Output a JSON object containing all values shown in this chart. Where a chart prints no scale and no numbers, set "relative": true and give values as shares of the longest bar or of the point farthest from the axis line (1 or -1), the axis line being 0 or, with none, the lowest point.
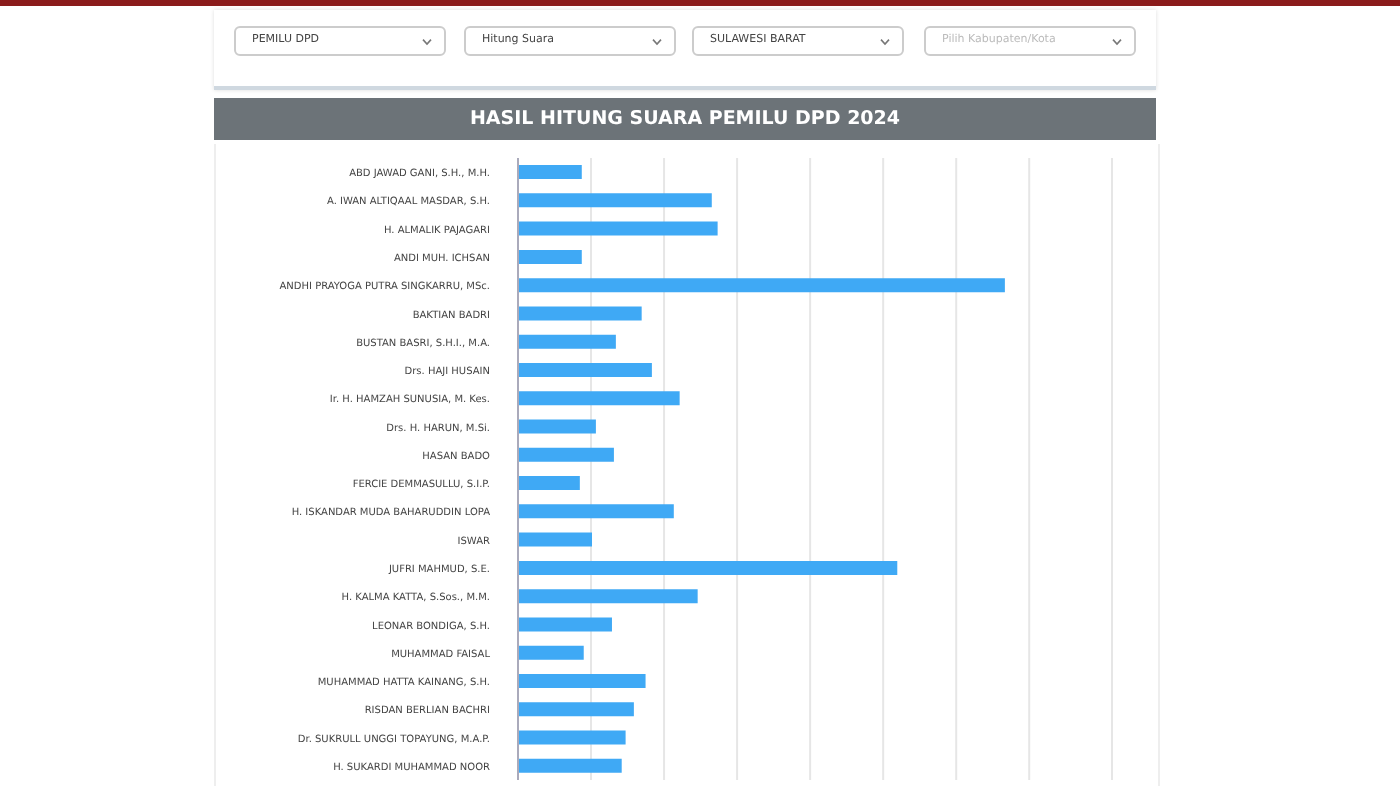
{
  "chart_data": {
    "type": "bar",
    "orientation": "horizontal",
    "relative": true,
    "title": "HASIL HITUNG SUARA PEMILU DPD 2024",
    "grid": "x",
    "color": "#3fa9f5",
    "annotations": [
      "PEMILU DPD",
      "Hitung Suara",
      "SULAWESI BARAT",
      "Pilih Kabupaten/Kota"
    ],
    "categories": [
      "ABD JAWAD GANI, S.H., M.H.",
      "A. IWAN ALTIQAAL MASDAR, S.H.",
      "H. ALMALIK PAJAGARI",
      "ANDI MUH. ICHSAN",
      "ANDHI PRAYOGA PUTRA SINGKARRU, MSc.",
      "BAKTIAN BADRI",
      "BUSTAN BASRI, S.H.I., M.A.",
      "Drs. HAJI HUSAIN",
      "Ir. H. HAMZAH SUNUSIA, M. Kes.",
      "Drs. H. HARUN, M.Si.",
      "HASAN BADO",
      "FERCIE DEMMASULLU, S.I.P.",
      "H. ISKANDAR MUDA BAHARUDDIN LOPA",
      "ISWAR",
      "JUFRI MAHMUD, S.E.",
      "H. KALMA KATTA, S.Sos., M.M.",
      "LEONAR BONDIGA, S.H.",
      "MUHAMMAD FAISAL",
      "MUHAMMAD HATTA KAINANG, S.H.",
      "RISDAN BERLIAN BACHRI",
      "Dr. SUKRULL UNGGI TOPAYUNG, M.A.P.",
      "H. SUKARDI MUHAMMAD NOOR"
    ],
    "values": [
      0.131,
      0.398,
      0.41,
      0.131,
      1,
      0.254,
      0.201,
      0.275,
      0.332,
      0.16,
      0.197,
      0.127,
      0.32,
      0.152,
      0.779,
      0.369,
      0.193,
      0.135,
      0.262,
      0.238,
      0.221,
      0.213
    ]
  }
}
